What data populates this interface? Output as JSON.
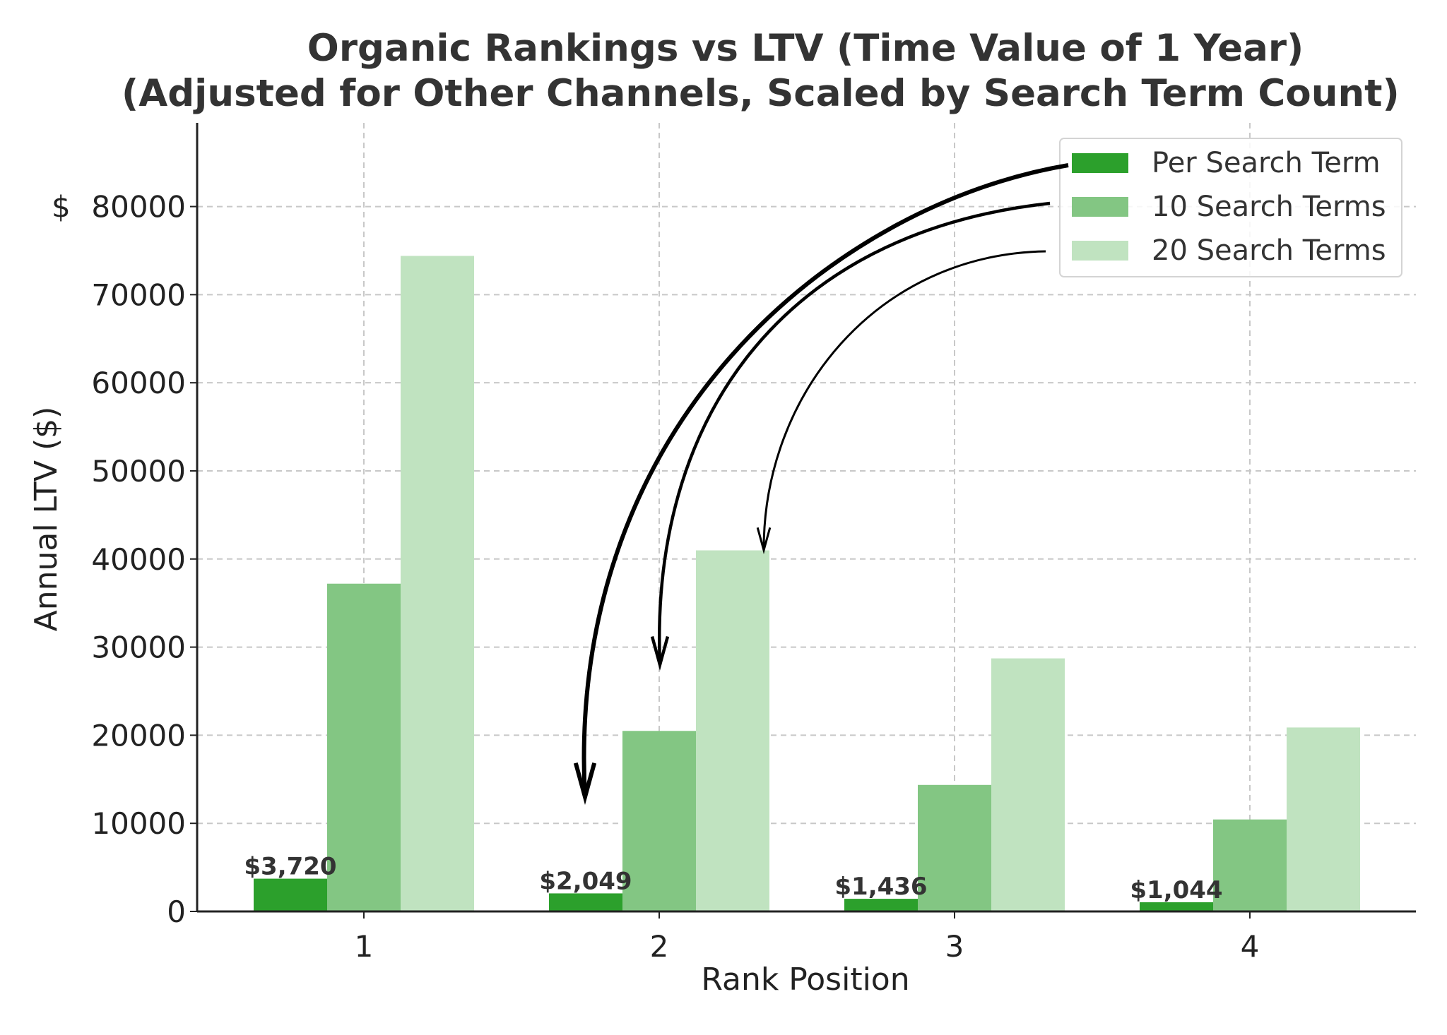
{
  "chart_data": {
    "type": "bar",
    "title": "Organic Rankings vs LTV (Time Value of 1 Year)",
    "subtitle": "(Adjusted for Other Channels, Scaled by Search Term Count)",
    "xlabel": "Rank Position",
    "ylabel": "Annual LTV ($)",
    "categories": [
      "1",
      "2",
      "3",
      "4"
    ],
    "ylim": [
      0,
      89500
    ],
    "yticks": [
      0,
      10000,
      20000,
      30000,
      40000,
      50000,
      60000,
      70000,
      80000
    ],
    "ytick_labels": [
      "0",
      "10000",
      "20000",
      "30000",
      "40000",
      "50000",
      "60000",
      "70000",
      "80000"
    ],
    "ytick_prefix": "$",
    "grid": true,
    "legend_position": "top-right",
    "series": [
      {
        "name": "Per Search Term",
        "color": "#2ca02c",
        "values": [
          3720,
          2049,
          1436,
          1044
        ]
      },
      {
        "name": "10 Search Terms",
        "color": "#83c683",
        "values": [
          37200,
          20490,
          14360,
          10440
        ]
      },
      {
        "name": "20 Search Terms",
        "color": "#c0e3c0",
        "values": [
          74400,
          40980,
          28720,
          20880
        ]
      }
    ],
    "data_labels": [
      "$3,720",
      "$2,049",
      "$1,436",
      "$1,044"
    ],
    "annotations": [
      {
        "type": "arrow",
        "from": "legend: Per Search Term",
        "to": "rank 2, $13,000"
      },
      {
        "type": "arrow",
        "from": "legend: 10 Search Terms",
        "to": "rank 2, $28,000"
      },
      {
        "type": "arrow",
        "from": "legend: 20 Search Terms",
        "to": "rank 2, $41,000"
      }
    ]
  }
}
